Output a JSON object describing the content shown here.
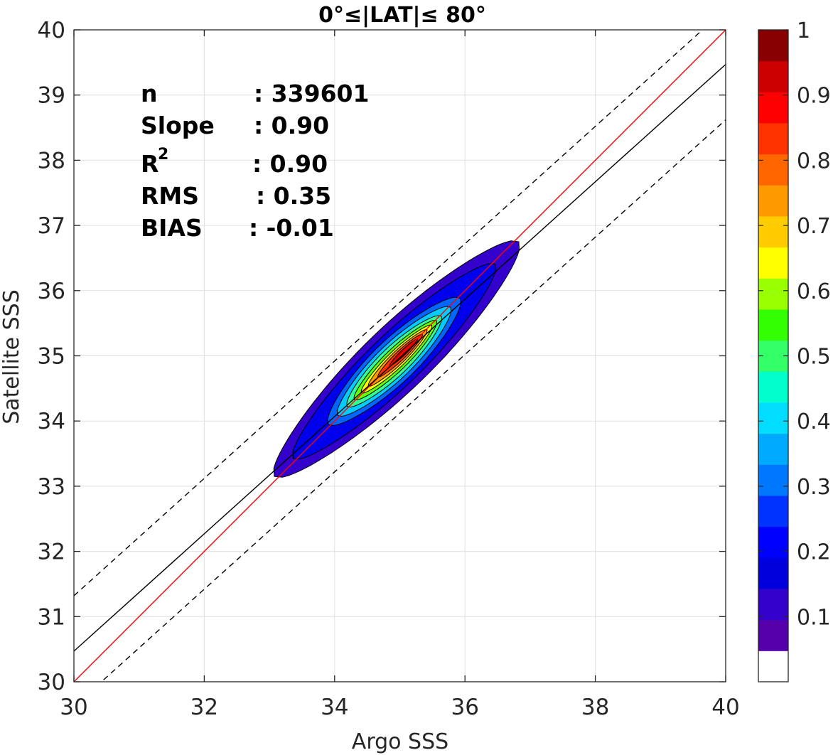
{
  "chart_data": {
    "type": "contour",
    "title": "0°≤|LAT|≤ 80°",
    "xlabel": "Argo SSS",
    "ylabel": "Satellite SSS",
    "xlim": [
      30,
      40
    ],
    "ylim": [
      30,
      40
    ],
    "xticks": [
      "30",
      "32",
      "34",
      "36",
      "38",
      "40"
    ],
    "yticks": [
      "30",
      "31",
      "32",
      "33",
      "34",
      "35",
      "36",
      "37",
      "38",
      "39",
      "40"
    ],
    "grid": true,
    "stats": [
      {
        "label": "n",
        "value": ": 339601"
      },
      {
        "label": "Slope",
        "value": ": 0.90"
      },
      {
        "label": "R",
        "sup": "2",
        "value": ": 0.90"
      },
      {
        "label": "RMS",
        "value": ": 0.35"
      },
      {
        "label": "BIAS",
        "value": ": -0.01"
      }
    ],
    "lines": [
      {
        "name": "1:1",
        "color": "#ff0000",
        "style": "solid",
        "slope": 1.0,
        "intercept": 0.0
      },
      {
        "name": "fit",
        "color": "#000000",
        "style": "solid",
        "slope": 0.9,
        "intercept": 3.47
      },
      {
        "name": "upper",
        "color": "#000000",
        "style": "dashed",
        "slope": 0.9,
        "intercept": 4.32
      },
      {
        "name": "lower",
        "color": "#000000",
        "style": "dashed",
        "slope": 0.9,
        "intercept": 2.62
      }
    ],
    "density_axis": {
      "center": [
        34.95,
        34.95
      ],
      "slope": 0.96
    },
    "density_levels": [
      {
        "level": 0.05,
        "along": [
          -2.6,
          2.6
        ],
        "half_width": 0.5,
        "color": "#3300cc"
      },
      {
        "level": 0.15,
        "along": [
          -2.2,
          2.1
        ],
        "half_width": 0.4,
        "color": "#0000ee"
      },
      {
        "level": 0.25,
        "along": [
          -1.45,
          1.35
        ],
        "half_width": 0.33,
        "color": "#0066ff"
      },
      {
        "level": 0.35,
        "along": [
          -1.25,
          1.15
        ],
        "half_width": 0.27,
        "color": "#00ccff"
      },
      {
        "level": 0.45,
        "along": [
          -1.05,
          0.95
        ],
        "half_width": 0.22,
        "color": "#33ff99"
      },
      {
        "level": 0.55,
        "along": [
          -0.9,
          0.85
        ],
        "half_width": 0.17,
        "color": "#66ff00"
      },
      {
        "level": 0.65,
        "along": [
          -0.75,
          0.75
        ],
        "half_width": 0.13,
        "color": "#ffff00"
      },
      {
        "level": 0.75,
        "along": [
          -0.6,
          0.65
        ],
        "half_width": 0.1,
        "color": "#ff9900"
      },
      {
        "level": 0.85,
        "along": [
          -0.4,
          0.55
        ],
        "half_width": 0.07,
        "color": "#ff3300"
      },
      {
        "level": 0.95,
        "along": [
          -0.15,
          0.45
        ],
        "half_width": 0.04,
        "color": "#cc0000"
      }
    ],
    "colorbar": {
      "ticks": [
        "0.1",
        "0.2",
        "0.3",
        "0.4",
        "0.5",
        "0.6",
        "0.7",
        "0.8",
        "0.9",
        "1"
      ],
      "colors": [
        "#ffffff",
        "#5500aa",
        "#3300cc",
        "#0000dd",
        "#0000ff",
        "#0033ff",
        "#0077ff",
        "#00aaff",
        "#00ddff",
        "#00ffcc",
        "#33ff66",
        "#33ff00",
        "#99ff00",
        "#ffff00",
        "#ffcc00",
        "#ff9900",
        "#ff6600",
        "#ff3300",
        "#ff0000",
        "#cc0000",
        "#880000"
      ]
    }
  }
}
